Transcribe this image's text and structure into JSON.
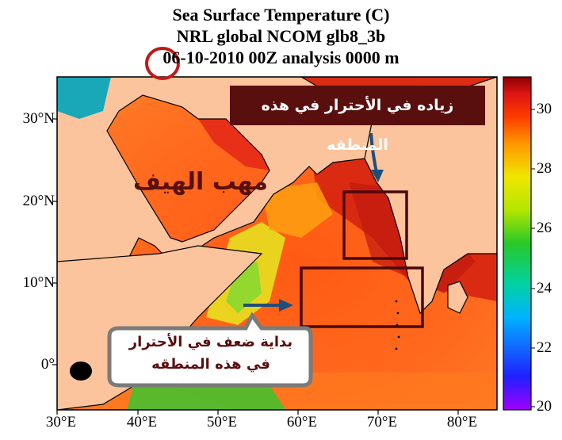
{
  "title": {
    "line1": "Sea Surface Temperature (C)",
    "line2": "NRL global NCOM glb8_3b",
    "line3": "06-10-2010 00Z analysis   0000 m"
  },
  "axes": {
    "x_ticks": [
      "30°E",
      "40°E",
      "50°E",
      "60°E",
      "70°E",
      "80°E"
    ],
    "y_ticks": [
      "30°N",
      "20°N",
      "10°N",
      "0°"
    ],
    "lon_range": [
      30,
      85
    ],
    "lat_range": [
      -5,
      35
    ]
  },
  "colorbar": {
    "ticks": [
      "30",
      "28",
      "26",
      "24",
      "22",
      "20"
    ],
    "range": [
      20,
      31
    ],
    "colors": [
      "#a000ff",
      "#2020ff",
      "#00b4ff",
      "#00d2a0",
      "#28c828",
      "#b4e600",
      "#f0e600",
      "#ff9600",
      "#ff3c00",
      "#dc1414",
      "#8c0000"
    ]
  },
  "annotations": {
    "top_box_text": "زياده في الأحترار في هذه المنطقه",
    "wind_label": "مهب الهيف",
    "bottom_bubble_line1": "بداية ضعف في الأحترار",
    "bottom_bubble_line2": "في هذه المنطقه"
  },
  "colors": {
    "land": "#fcc49c",
    "annotation_dark_red": "#5a0f0f",
    "arrow_blue": "#1f4e79",
    "highlight_circle": "#c01818"
  }
}
